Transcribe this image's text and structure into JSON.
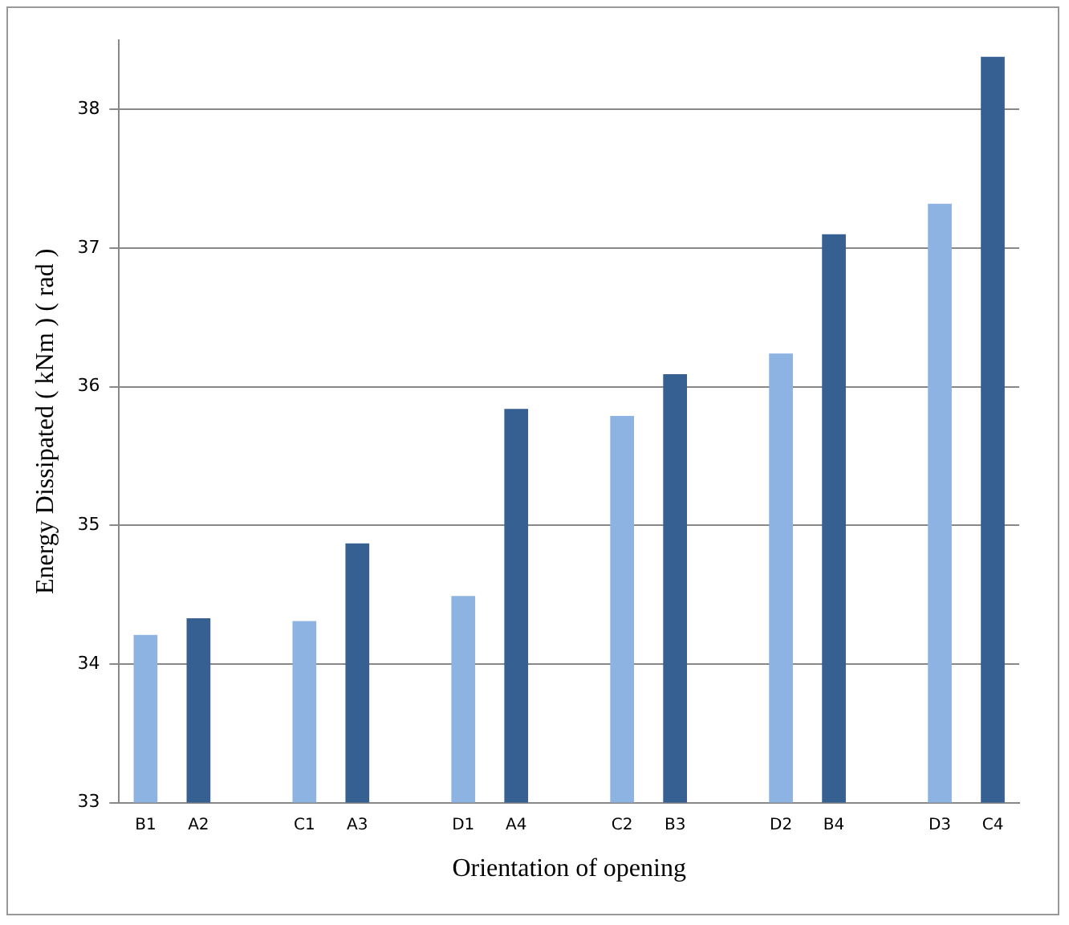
{
  "chart_data": {
    "type": "bar",
    "xlabel": "Orientation of opening",
    "ylabel": "Energy Dissipated ( kNm ) ( rad )",
    "categories": [
      "B1",
      "A2",
      null,
      "C1",
      "A3",
      null,
      "D1",
      "A4",
      null,
      "C2",
      "B3",
      null,
      "D2",
      "B4",
      null,
      "D3",
      "C4"
    ],
    "values": [
      34.21,
      34.33,
      null,
      34.31,
      34.87,
      null,
      34.49,
      35.84,
      null,
      35.79,
      36.09,
      null,
      36.24,
      37.1,
      null,
      37.32,
      38.38
    ],
    "colors": [
      "#8db3e2",
      "#376092",
      null,
      "#8db3e2",
      "#376092",
      null,
      "#8db3e2",
      "#376092",
      null,
      "#8db3e2",
      "#376092",
      null,
      "#8db3e2",
      "#376092",
      null,
      "#8db3e2",
      "#376092"
    ],
    "ylim": [
      33,
      38.5
    ],
    "yticks": [
      33,
      34,
      35,
      36,
      37,
      38
    ],
    "grid": "y",
    "legend": false
  }
}
